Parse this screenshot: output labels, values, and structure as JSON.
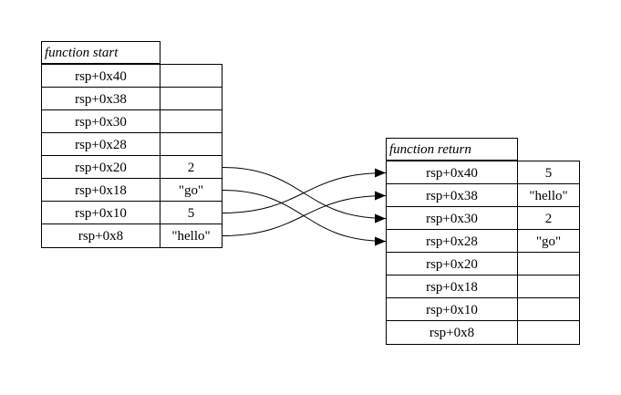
{
  "left_stack": {
    "title": "function start",
    "rows": [
      {
        "addr": "rsp+0x40",
        "value": ""
      },
      {
        "addr": "rsp+0x38",
        "value": ""
      },
      {
        "addr": "rsp+0x30",
        "value": ""
      },
      {
        "addr": "rsp+0x28",
        "value": ""
      },
      {
        "addr": "rsp+0x20",
        "value": "2"
      },
      {
        "addr": "rsp+0x18",
        "value": "\"go\""
      },
      {
        "addr": "rsp+0x10",
        "value": "5"
      },
      {
        "addr": "rsp+0x8",
        "value": "\"hello\""
      }
    ]
  },
  "right_stack": {
    "title": "function return",
    "rows": [
      {
        "addr": "rsp+0x40",
        "value": "5"
      },
      {
        "addr": "rsp+0x38",
        "value": "\"hello\""
      },
      {
        "addr": "rsp+0x30",
        "value": "2"
      },
      {
        "addr": "rsp+0x28",
        "value": "\"go\""
      },
      {
        "addr": "rsp+0x20",
        "value": ""
      },
      {
        "addr": "rsp+0x18",
        "value": ""
      },
      {
        "addr": "rsp+0x10",
        "value": ""
      },
      {
        "addr": "rsp+0x8",
        "value": ""
      }
    ]
  },
  "connections": [
    {
      "from": "rsp+0x20",
      "to": "rsp+0x30"
    },
    {
      "from": "rsp+0x18",
      "to": "rsp+0x28"
    },
    {
      "from": "rsp+0x10",
      "to": "rsp+0x40"
    },
    {
      "from": "rsp+0x8",
      "to": "rsp+0x38"
    }
  ]
}
